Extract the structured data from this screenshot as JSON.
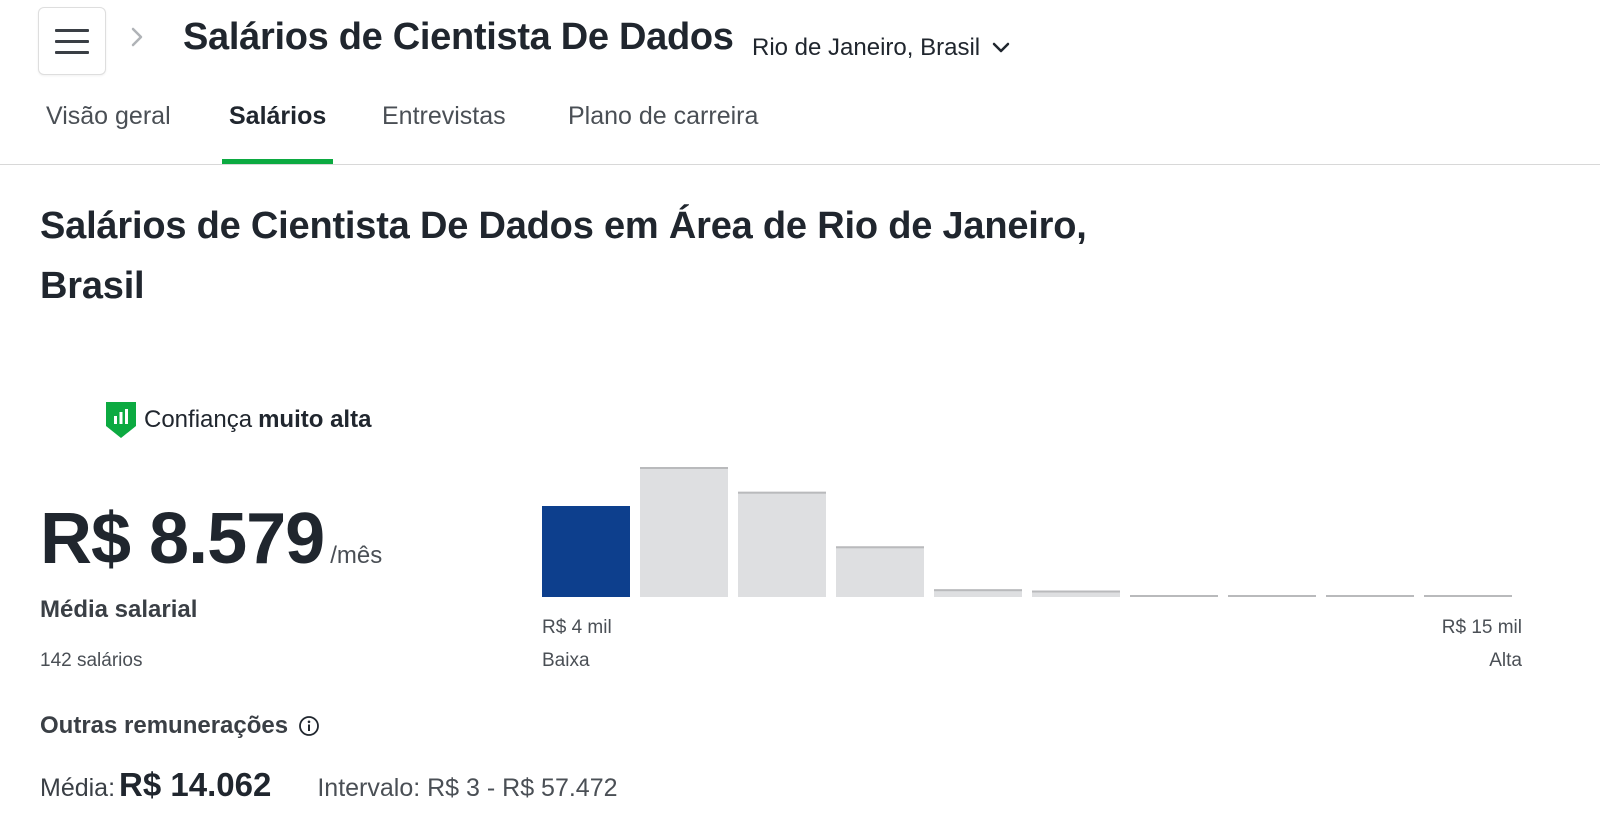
{
  "header": {
    "menu_icon": "hamburger-menu-icon",
    "breadcrumb_icon": "chevron-right-icon",
    "title": "Salários de Cientista De Dados",
    "location": "Rio de Janeiro, Brasil",
    "location_icon": "chevron-down-icon"
  },
  "tabs": [
    {
      "label": "Visão geral",
      "active": false
    },
    {
      "label": "Salários",
      "active": true
    },
    {
      "label": "Entrevistas",
      "active": false
    },
    {
      "label": "Plano de carreira",
      "active": false
    }
  ],
  "main": {
    "title": "Salários de Cientista De Dados em Área de Rio de Janeiro, Brasil",
    "confidence": {
      "prefix": "Confiança",
      "level": "muito alta",
      "icon": "confidence-shield-icon"
    },
    "average_salary": "R$ 8.579",
    "period": "/mês",
    "average_label": "Média salarial",
    "count": "142 salários",
    "other_comp": {
      "title": "Outras remunerações",
      "info_icon": "info-icon",
      "avg_label": "Média:",
      "avg_value": "R$ 14.062",
      "range": "Intervalo: R$ 3 - R$ 57.472"
    }
  },
  "colors": {
    "accent_green": "#0caa41",
    "bar_highlight": "#0d3f8d",
    "bar_default": "#dedfe1",
    "bar_top": "#b9babc"
  },
  "chart_data": {
    "type": "bar",
    "title": "",
    "categories": [
      "1",
      "2",
      "3",
      "4",
      "5",
      "6",
      "7",
      "8",
      "9",
      "10"
    ],
    "values": [
      70,
      100,
      81,
      39,
      6,
      5,
      1,
      1,
      1,
      1
    ],
    "highlight_index": 0,
    "x_min_label": "R$ 4 mil",
    "x_max_label": "R$ 15 mil",
    "low_label": "Baixa",
    "high_label": "Alta",
    "ylim": [
      0,
      100
    ]
  }
}
